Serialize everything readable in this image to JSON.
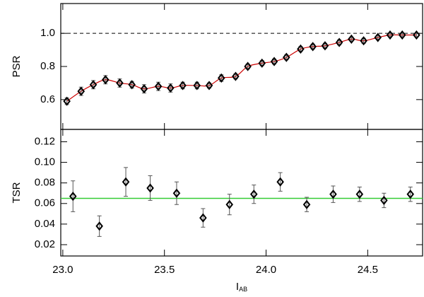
{
  "chart_data": [
    {
      "type": "scatter",
      "ylabel": "PSR",
      "x": [
        23.02,
        23.09,
        23.15,
        23.21,
        23.28,
        23.34,
        23.4,
        23.47,
        23.53,
        23.59,
        23.66,
        23.72,
        23.78,
        23.85,
        23.91,
        23.98,
        24.04,
        24.1,
        24.17,
        24.23,
        24.29,
        24.36,
        24.42,
        24.48,
        24.55,
        24.61,
        24.67,
        24.74
      ],
      "values": [
        0.59,
        0.65,
        0.69,
        0.72,
        0.7,
        0.69,
        0.665,
        0.68,
        0.67,
        0.685,
        0.685,
        0.685,
        0.73,
        0.74,
        0.8,
        0.82,
        0.83,
        0.855,
        0.905,
        0.92,
        0.925,
        0.945,
        0.965,
        0.955,
        0.975,
        0.99,
        0.99,
        0.99
      ],
      "errors": [
        0.02,
        0.025,
        0.025,
        0.025,
        0.025,
        0.02,
        0.025,
        0.025,
        0.025,
        0.02,
        0.02,
        0.015,
        0.02,
        0.015,
        0.015,
        0.015,
        0.015,
        0.015,
        0.015,
        0.015,
        0.015,
        0.015,
        0.01,
        0.015,
        0.01,
        0.01,
        0.01,
        0.01
      ],
      "color": "#000000",
      "line_color": "#cc0000",
      "hline": 1.0,
      "hline_color": "#000000",
      "hline_style": "dashed",
      "xlim": [
        22.99,
        24.77
      ],
      "xticks": [
        23,
        23.5,
        24,
        24.5
      ],
      "ylim": [
        0.42,
        1.18
      ],
      "yticks": [
        0.6,
        0.8,
        {
          "value": 1.0,
          "label": "1.0"
        }
      ]
    },
    {
      "type": "scatter",
      "ylabel": "TSR",
      "xlabel": "I",
      "xlabel_subscript": "AB",
      "x": [
        23.05,
        23.18,
        23.31,
        23.43,
        23.56,
        23.69,
        23.82,
        23.94,
        24.07,
        24.2,
        24.33,
        24.46,
        24.58,
        24.71
      ],
      "values": [
        0.067,
        0.038,
        0.081,
        0.075,
        0.07,
        0.046,
        0.059,
        0.069,
        0.081,
        0.059,
        0.069,
        0.069,
        0.063,
        0.069
      ],
      "errors": [
        0.015,
        0.01,
        0.014,
        0.012,
        0.011,
        0.009,
        0.01,
        0.009,
        0.009,
        0.007,
        0.008,
        0.007,
        0.007,
        0.007
      ],
      "color": "#000000",
      "hline": 0.065,
      "hline_color": "#33cc33",
      "hline_style": "solid",
      "xlim": [
        22.99,
        24.77
      ],
      "xticks": [
        {
          "value": 23,
          "label": "23.0"
        },
        {
          "value": 23.5,
          "label": "23.5"
        },
        {
          "value": 24,
          "label": "24.0"
        },
        {
          "value": 24.5,
          "label": "24.5"
        }
      ],
      "ylim": [
        0.009,
        0.132
      ],
      "yticks": [
        0.02,
        0.04,
        0.06,
        0.08,
        {
          "value": 0.1,
          "label": "0.10"
        },
        0.12
      ]
    }
  ]
}
